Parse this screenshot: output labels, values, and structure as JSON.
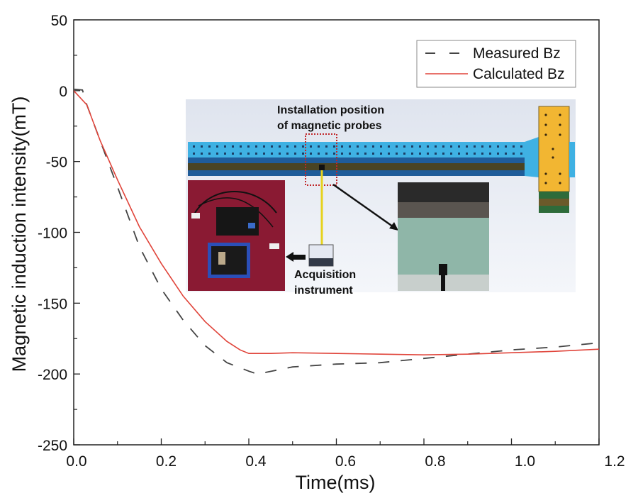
{
  "chart_data": {
    "type": "line",
    "title": "",
    "xlabel": "Time(ms)",
    "ylabel": "Magnetic induction intensity(mT)",
    "xlim": [
      0,
      1.2
    ],
    "ylim": [
      -250,
      50
    ],
    "xticks": [
      "0.0",
      "0.2",
      "0.4",
      "0.6",
      "0.8",
      "1.0",
      "1.2"
    ],
    "xtick_values": [
      0,
      0.2,
      0.4,
      0.6,
      0.8,
      1.0,
      1.2
    ],
    "yticks": [
      "50",
      "0",
      "-50",
      "-100",
      "-150",
      "-200",
      "-250"
    ],
    "ytick_values": [
      50,
      0,
      -50,
      -100,
      -150,
      -200,
      -250
    ],
    "grid": false,
    "legend_position": "top-right",
    "series": [
      {
        "name": "Measured Bz",
        "style": "dashed",
        "color": "#444444",
        "x": [
          0,
          0.02,
          0.03,
          0.06,
          0.1,
          0.15,
          0.2,
          0.25,
          0.3,
          0.35,
          0.4,
          0.42,
          0.5,
          0.6,
          0.7,
          0.8,
          0.9,
          1.0,
          1.1,
          1.2
        ],
        "y": [
          1,
          0.5,
          -10,
          -35,
          -68,
          -110,
          -140,
          -162,
          -180,
          -192,
          -198,
          -200,
          -195,
          -193,
          -192,
          -189,
          -186,
          -183,
          -181,
          -178
        ]
      },
      {
        "name": "Calculated Bz",
        "style": "solid",
        "color": "#e0443a",
        "x": [
          0,
          0.03,
          0.06,
          0.1,
          0.15,
          0.2,
          0.25,
          0.3,
          0.35,
          0.38,
          0.4,
          0.45,
          0.5,
          0.6,
          0.7,
          0.8,
          0.9,
          1.0,
          1.1,
          1.2
        ],
        "y": [
          0,
          -10,
          -35,
          -63,
          -96,
          -122,
          -145,
          -163,
          -177,
          -183,
          -185.5,
          -185.5,
          -185,
          -185.5,
          -186,
          -186.5,
          -186,
          -185,
          -184,
          -182.5
        ]
      }
    ],
    "annotations": [
      "Installation position",
      "of magnetic probes",
      "Acquisition",
      "instrument"
    ]
  }
}
